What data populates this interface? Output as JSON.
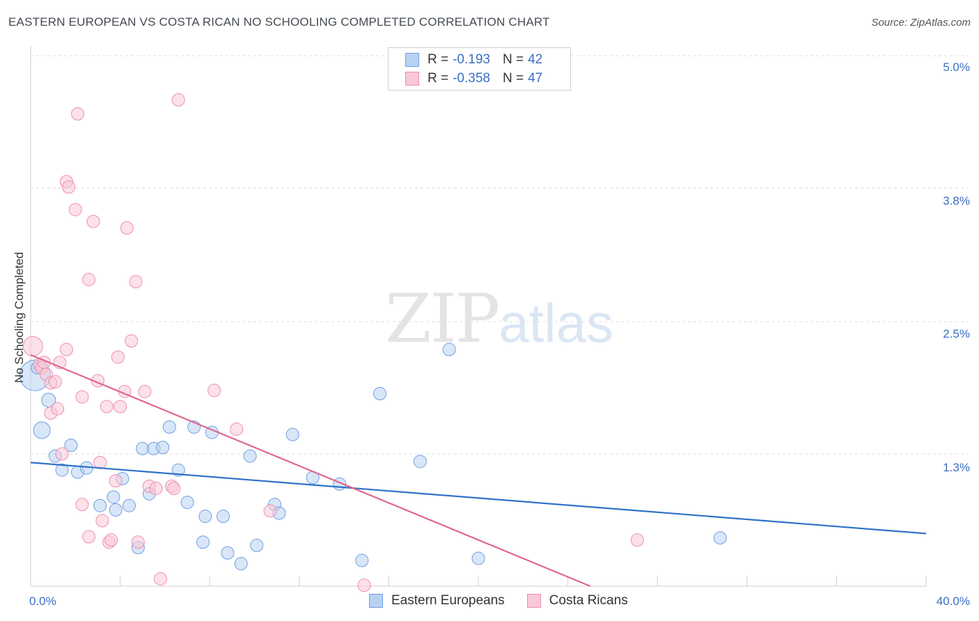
{
  "header": {
    "title": "EASTERN EUROPEAN VS COSTA RICAN NO SCHOOLING COMPLETED CORRELATION CHART",
    "source": "Source: ZipAtlas.com"
  },
  "watermark": {
    "zip": "ZIP",
    "atlas": "atlas"
  },
  "legend": {
    "rows": [
      {
        "r_label": "R =",
        "r_value": "-0.193",
        "n_label": "N =",
        "n_value": "42"
      },
      {
        "r_label": "R =",
        "r_value": "-0.358",
        "n_label": "N =",
        "n_value": "47"
      }
    ]
  },
  "bottom_legend": {
    "items": [
      {
        "label": "Eastern Europeans"
      },
      {
        "label": "Costa Ricans"
      }
    ]
  },
  "colors": {
    "blue_fill": "#b8d2f2",
    "blue_stroke": "#6f9fe0",
    "blue_line": "#2f72c8",
    "pink_fill": "#f9c8d6",
    "pink_stroke": "#ec8fae",
    "pink_line": "#e06690",
    "axis_text": "#3b6fc4",
    "grid": "#dddddd"
  },
  "chart_data": {
    "type": "scatter",
    "title": "EASTERN EUROPEAN VS COSTA RICAN NO SCHOOLING COMPLETED CORRELATION CHART",
    "xlabel": "",
    "ylabel": "No Schooling Completed",
    "xlim": [
      0,
      40
    ],
    "ylim": [
      0,
      5.2
    ],
    "x_tick_labels": [
      "0.0%",
      "40.0%"
    ],
    "y_ticks": [
      1.3,
      2.5,
      3.8,
      5.0
    ],
    "y_tick_labels": [
      "1.3%",
      "2.5%",
      "3.8%",
      "5.0%"
    ],
    "grid": "horizontal dashed",
    "series": [
      {
        "name": "Eastern Europeans",
        "color": "blue",
        "r": -0.193,
        "n": 42,
        "trend": [
          [
            0,
            1.22
          ],
          [
            40,
            0.56
          ]
        ],
        "points": [
          [
            0.2,
            2.03,
            22
          ],
          [
            0.5,
            1.52,
            12
          ],
          [
            0.8,
            1.8,
            10
          ],
          [
            1.8,
            1.38,
            9
          ],
          [
            1.1,
            1.28,
            9
          ],
          [
            1.4,
            1.15,
            9
          ],
          [
            2.1,
            1.13,
            9
          ],
          [
            2.5,
            1.17,
            9
          ],
          [
            3.1,
            0.82,
            9
          ],
          [
            3.7,
            0.9,
            9
          ],
          [
            3.8,
            0.78,
            9
          ],
          [
            4.1,
            1.07,
            9
          ],
          [
            4.4,
            0.82,
            9
          ],
          [
            4.8,
            0.43,
            9
          ],
          [
            5.0,
            1.35,
            9
          ],
          [
            5.3,
            0.93,
            9
          ],
          [
            5.5,
            1.35,
            9
          ],
          [
            5.9,
            1.36,
            9
          ],
          [
            6.2,
            1.55,
            9
          ],
          [
            6.6,
            1.15,
            9
          ],
          [
            7.0,
            0.85,
            9
          ],
          [
            7.3,
            1.55,
            9
          ],
          [
            7.7,
            0.48,
            9
          ],
          [
            7.8,
            0.72,
            9
          ],
          [
            8.1,
            1.5,
            9
          ],
          [
            8.6,
            0.72,
            9
          ],
          [
            8.8,
            0.38,
            9
          ],
          [
            9.4,
            0.28,
            9
          ],
          [
            9.8,
            1.28,
            9
          ],
          [
            10.1,
            0.45,
            9
          ],
          [
            10.9,
            0.83,
            9
          ],
          [
            11.1,
            0.75,
            9
          ],
          [
            11.7,
            1.48,
            9
          ],
          [
            12.6,
            1.08,
            9
          ],
          [
            13.8,
            1.02,
            9
          ],
          [
            14.8,
            0.31,
            9
          ],
          [
            15.6,
            1.86,
            9
          ],
          [
            17.4,
            1.23,
            9
          ],
          [
            18.7,
            2.27,
            9
          ],
          [
            20.0,
            0.33,
            9
          ],
          [
            30.8,
            0.52,
            9
          ],
          [
            0.3,
            2.1,
            9
          ]
        ]
      },
      {
        "name": "Costa Ricans",
        "color": "pink",
        "r": -0.358,
        "n": 47,
        "trend": [
          [
            0,
            2.22
          ],
          [
            25,
            0.0
          ]
        ],
        "points": [
          [
            0.1,
            2.3,
            14
          ],
          [
            0.4,
            2.13,
            9
          ],
          [
            0.5,
            2.1,
            9
          ],
          [
            0.6,
            2.15,
            9
          ],
          [
            0.7,
            2.04,
            9
          ],
          [
            0.9,
            1.96,
            9
          ],
          [
            0.9,
            1.68,
            9
          ],
          [
            1.1,
            1.97,
            9
          ],
          [
            1.2,
            1.72,
            9
          ],
          [
            1.3,
            2.15,
            9
          ],
          [
            1.4,
            1.3,
            9
          ],
          [
            1.6,
            2.27,
            9
          ],
          [
            1.6,
            3.83,
            9
          ],
          [
            1.7,
            3.78,
            9
          ],
          [
            2.1,
            4.46,
            9
          ],
          [
            2.0,
            3.57,
            9
          ],
          [
            2.3,
            1.83,
            9
          ],
          [
            2.3,
            0.83,
            9
          ],
          [
            2.6,
            0.53,
            9
          ],
          [
            2.6,
            2.92,
            9
          ],
          [
            2.8,
            3.46,
            9
          ],
          [
            3.0,
            1.98,
            9
          ],
          [
            3.1,
            1.22,
            9
          ],
          [
            3.2,
            0.68,
            9
          ],
          [
            3.4,
            1.74,
            9
          ],
          [
            3.5,
            0.48,
            9
          ],
          [
            3.6,
            0.5,
            9
          ],
          [
            3.8,
            1.05,
            9
          ],
          [
            3.9,
            2.2,
            9
          ],
          [
            4.0,
            1.74,
            9
          ],
          [
            4.2,
            1.88,
            9
          ],
          [
            4.3,
            3.4,
            9
          ],
          [
            4.5,
            2.35,
            9
          ],
          [
            4.7,
            2.9,
            9
          ],
          [
            4.8,
            0.48,
            9
          ],
          [
            5.1,
            1.88,
            9
          ],
          [
            5.3,
            1.0,
            9
          ],
          [
            5.6,
            0.98,
            9
          ],
          [
            5.8,
            0.14,
            9
          ],
          [
            6.3,
            1.0,
            9
          ],
          [
            6.4,
            0.98,
            9
          ],
          [
            6.6,
            4.59,
            9
          ],
          [
            8.2,
            1.89,
            9
          ],
          [
            9.2,
            1.53,
            9
          ],
          [
            10.7,
            0.77,
            9
          ],
          [
            14.9,
            0.08,
            9
          ],
          [
            27.1,
            0.5,
            9
          ]
        ]
      }
    ]
  }
}
